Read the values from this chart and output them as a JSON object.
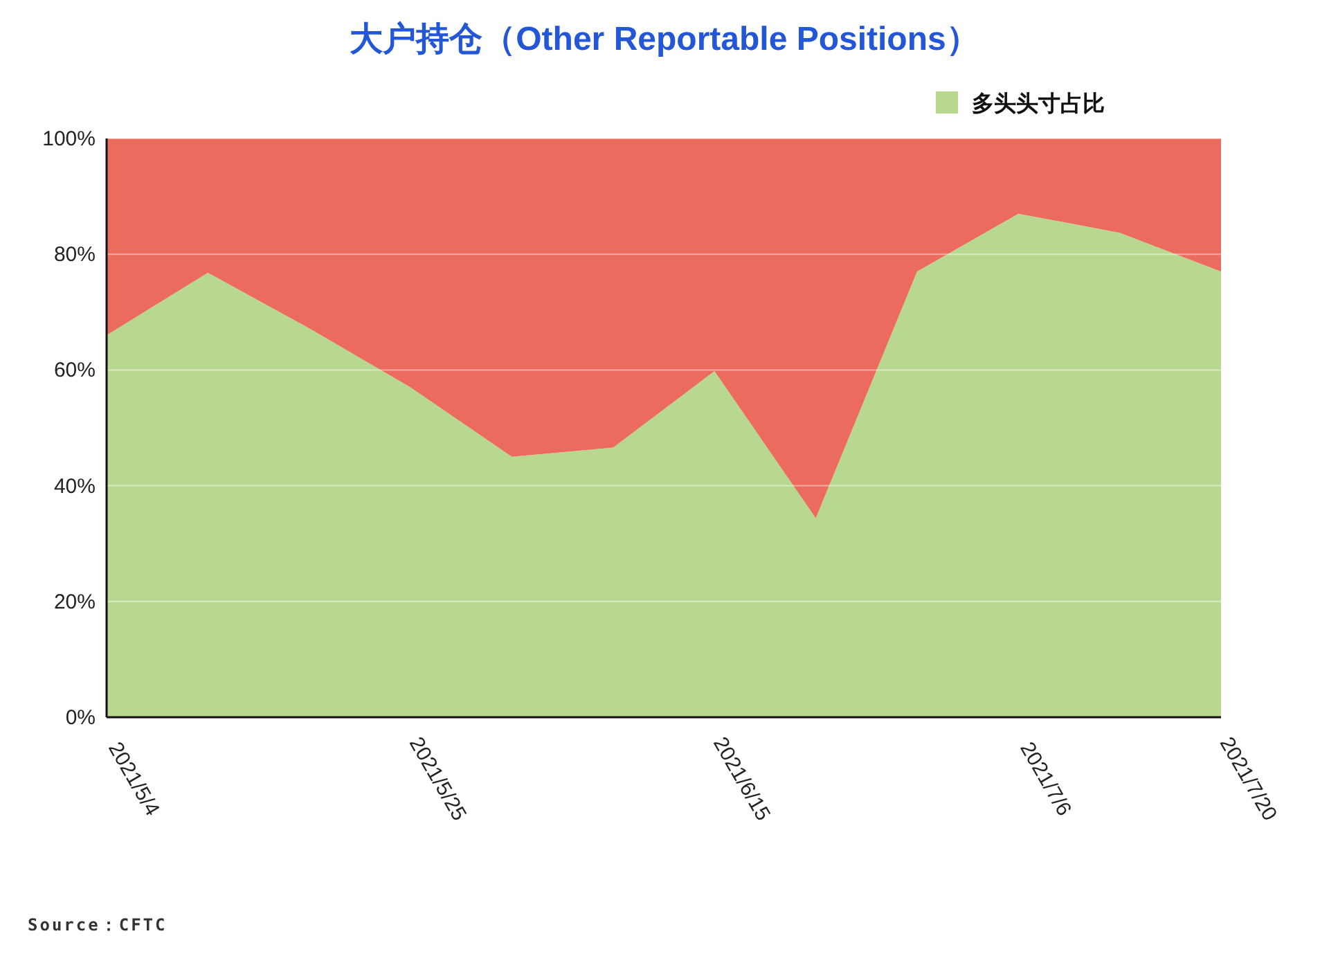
{
  "chart_data": {
    "type": "area",
    "stacked": true,
    "title": "大户持仓（Other Reportable Positions）",
    "x": [
      "2021-05-04",
      "2021-05-11",
      "2021-05-18",
      "2021-05-25",
      "2021-06-01",
      "2021-06-08",
      "2021-06-15",
      "2021-06-22",
      "2021-06-29",
      "2021-07-06",
      "2021-07-13",
      "2021-07-20"
    ],
    "series": [
      {
        "name": "多头头寸占比",
        "color": "#b9d88f",
        "values": [
          66,
          76.8,
          67.2,
          57,
          45,
          46.6,
          59.8,
          34.4,
          77,
          87,
          83.7,
          77
        ]
      },
      {
        "color": "#eb6b5e",
        "values": [
          34,
          23.2,
          32.8,
          43,
          55,
          53.4,
          40.2,
          65.6,
          23,
          13,
          16.3,
          23
        ]
      }
    ],
    "xlim": [
      "2021-05-04",
      "2021-07-20"
    ],
    "xticks": [
      {
        "value": "2021-05-04",
        "label": "2021/5/4"
      },
      {
        "value": "2021-05-25",
        "label": "2021/5/25"
      },
      {
        "value": "2021-06-15",
        "label": "2021/6/15"
      },
      {
        "value": "2021-07-06",
        "label": "2021/7/6"
      },
      {
        "value": "2021-07-20",
        "label": "2021/7/20"
      }
    ],
    "ylim": [
      0,
      100
    ],
    "yticks": [
      {
        "value": 0,
        "label": "0%"
      },
      {
        "value": 20,
        "label": "20%"
      },
      {
        "value": 40,
        "label": "40%"
      },
      {
        "value": 60,
        "label": "60%"
      },
      {
        "value": 80,
        "label": "80%"
      },
      {
        "value": 100,
        "label": "100%"
      }
    ],
    "grid": "y",
    "legend": "top right",
    "annotations": [
      "Source：CFTC"
    ]
  }
}
